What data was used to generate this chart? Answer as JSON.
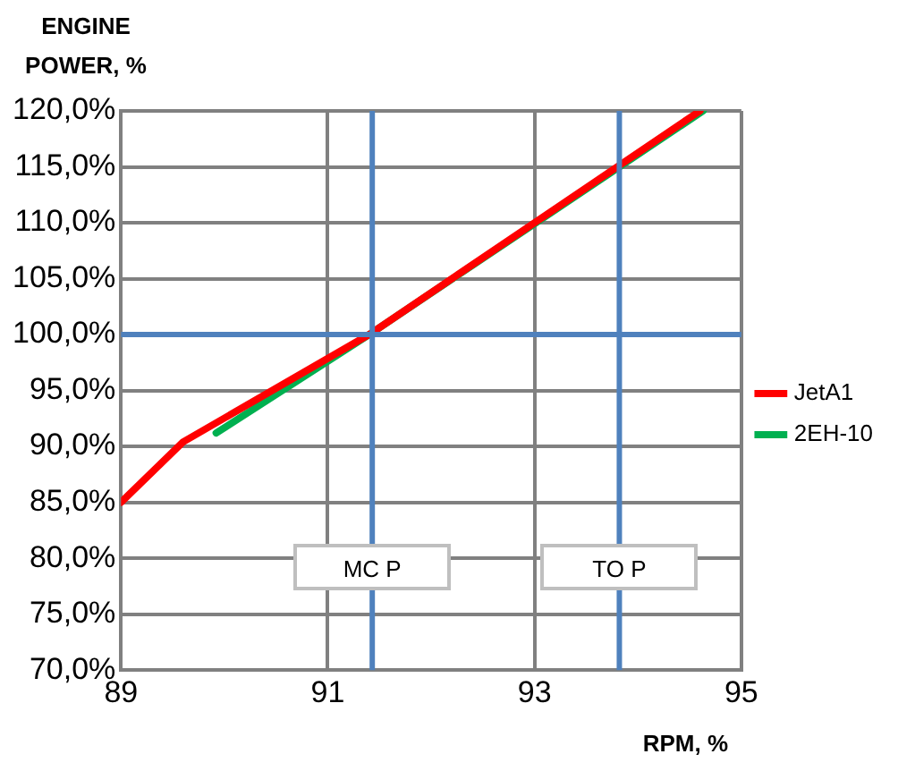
{
  "chart_data": {
    "type": "line",
    "xlabel": "RPM, %",
    "ylabel": "ENGINE POWER, %",
    "series": [
      {
        "name": "JetA1",
        "color": "#ff0000",
        "x": [
          89,
          89.6,
          91.4,
          94.6
        ],
        "values": [
          85,
          90.4,
          100,
          120
        ]
      },
      {
        "name": "2EH-10",
        "color": "#00b050",
        "x": [
          89.92,
          91.4,
          94.63
        ],
        "values": [
          91.2,
          100,
          120
        ]
      }
    ],
    "xlim": [
      89,
      95
    ],
    "xticks": [
      89,
      91,
      93,
      95
    ],
    "ylim": [
      70,
      120
    ],
    "yticks": [
      {
        "value": 70,
        "label": "70,0%"
      },
      {
        "value": 75,
        "label": "75,0%"
      },
      {
        "value": 80,
        "label": "80,0%"
      },
      {
        "value": 85,
        "label": "85,0%"
      },
      {
        "value": 90,
        "label": "90,0%"
      },
      {
        "value": 95,
        "label": "95,0%"
      },
      {
        "value": 100,
        "label": "100,0%"
      },
      {
        "value": 105,
        "label": "105,0%"
      },
      {
        "value": 110,
        "label": "110,0%"
      },
      {
        "value": 115,
        "label": "115,0%"
      },
      {
        "value": 120,
        "label": "120,0%"
      }
    ],
    "ref_lines": [
      {
        "axis": "y",
        "value": 100,
        "color": "#4f81bd"
      },
      {
        "axis": "x",
        "value": 91.43,
        "label": "MC P",
        "color": "#4f81bd"
      },
      {
        "axis": "x",
        "value": 93.82,
        "label": "TO P",
        "color": "#4f81bd"
      }
    ],
    "grid": true,
    "legend": "right",
    "marker": "none",
    "line_style": "solid"
  }
}
